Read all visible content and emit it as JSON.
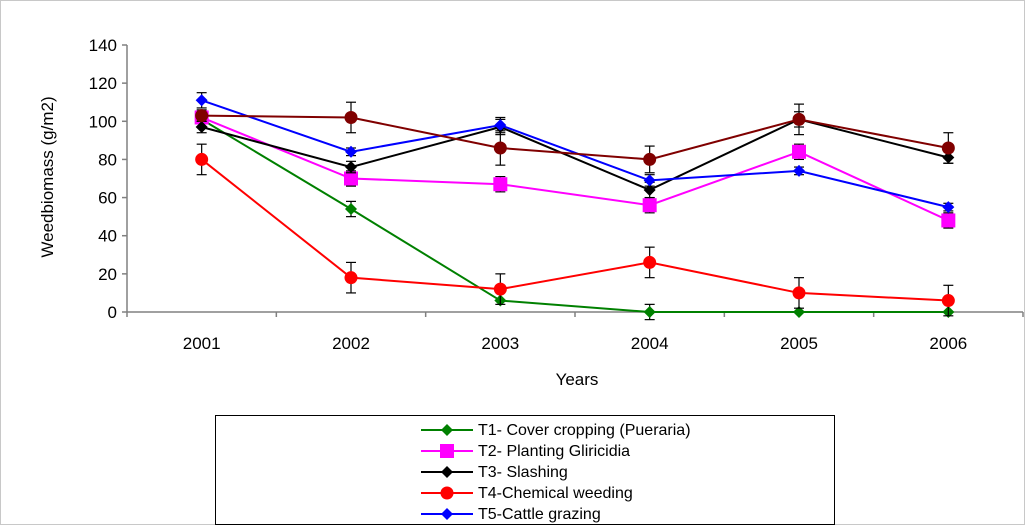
{
  "chart_data": {
    "type": "line",
    "title": "",
    "xlabel": "Years",
    "ylabel": "Weedbiomass (g/m2)",
    "categories": [
      "2001",
      "2002",
      "2003",
      "2004",
      "2005",
      "2006"
    ],
    "ylim": [
      0,
      140
    ],
    "yticks": [
      0,
      20,
      40,
      60,
      80,
      100,
      120,
      140
    ],
    "grid": false,
    "legend_position": "bottom",
    "series": [
      {
        "name": "T1- Cover cropping (Pueraria)",
        "color": "#008000",
        "marker": "diamond",
        "values": [
          101,
          54,
          6,
          0,
          0,
          0
        ],
        "errors": [
          0,
          4,
          0,
          4,
          0,
          0
        ]
      },
      {
        "name": "T2- Planting Gliricidia",
        "color": "#ff00ff",
        "marker": "square",
        "values": [
          102,
          70,
          67,
          56,
          84,
          48
        ],
        "errors": [
          3,
          4,
          4,
          4,
          4,
          4
        ]
      },
      {
        "name": "T3- Slashing",
        "color": "#000000",
        "marker": "diamond",
        "values": [
          97,
          76,
          97,
          64,
          101,
          81
        ],
        "errors": [
          3,
          3,
          4,
          4,
          4,
          3
        ]
      },
      {
        "name": "T4-Chemical weeding",
        "color": "#ff0000",
        "marker": "circle",
        "values": [
          80,
          18,
          12,
          26,
          10,
          6
        ],
        "errors": [
          8,
          8,
          8,
          8,
          8,
          8
        ]
      },
      {
        "name": "T5-Cattle grazing",
        "color": "#0000ff",
        "marker": "diamond",
        "values": [
          111,
          84,
          98,
          69,
          74,
          55
        ],
        "errors": [
          4,
          2,
          4,
          3,
          2,
          2
        ]
      },
      {
        "name": "",
        "color": "#800000",
        "marker": "circle",
        "values": [
          103,
          102,
          86,
          80,
          101,
          86
        ],
        "errors": [
          3,
          8,
          9,
          7,
          8,
          8
        ]
      }
    ]
  }
}
